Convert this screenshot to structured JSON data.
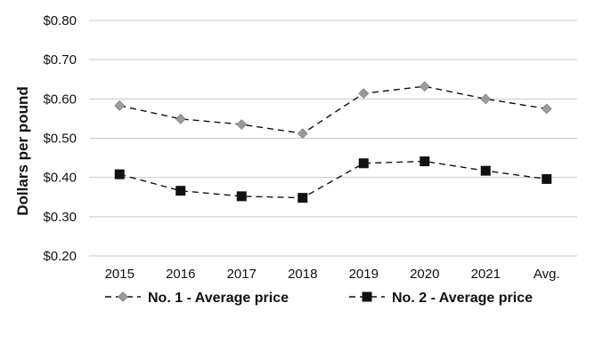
{
  "chart_data": {
    "type": "line",
    "title": "",
    "xlabel": "",
    "ylabel": "Dollars per pound",
    "categories": [
      "2015",
      "2016",
      "2017",
      "2018",
      "2019",
      "2020",
      "2021",
      "Avg."
    ],
    "y_ticks": [
      "$0.20",
      "$0.30",
      "$0.40",
      "$0.50",
      "$0.60",
      "$0.70",
      "$0.80"
    ],
    "ylim": [
      0.2,
      0.8
    ],
    "grid": true,
    "legend_position": "bottom",
    "series": [
      {
        "name": "No. 1 - Average price",
        "marker": "diamond",
        "color": "#9a9a9a",
        "line_style": "dashed",
        "values": [
          0.583,
          0.549,
          0.535,
          0.512,
          0.614,
          0.632,
          0.6,
          0.575
        ]
      },
      {
        "name": "No. 2 - Average price",
        "marker": "square",
        "color": "#111111",
        "line_style": "dashed",
        "values": [
          0.408,
          0.366,
          0.352,
          0.348,
          0.436,
          0.441,
          0.417,
          0.396
        ]
      }
    ]
  }
}
